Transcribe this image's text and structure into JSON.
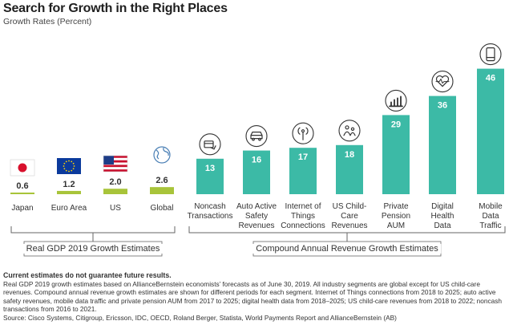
{
  "header": {
    "title": "Search for Growth in the Right Places",
    "subtitle": "Growth Rates (Percent)"
  },
  "colors": {
    "teal": "#3cbaa6",
    "lime": "#a8c43a",
    "axis": "#666666",
    "text": "#333333"
  },
  "chart_data": [
    {
      "type": "bar",
      "title": "Real GDP 2019 Growth Estimates",
      "categories": [
        "Japan",
        "Euro Area",
        "US",
        "Global"
      ],
      "values": [
        0.6,
        1.2,
        2.0,
        2.6
      ],
      "value_labels": [
        "0.6",
        "1.2",
        "2.0",
        "2.6"
      ],
      "flags": [
        "japan-flag-icon",
        "eu-flag-icon",
        "us-flag-icon",
        "globe-icon"
      ],
      "color": "#a8c43a"
    },
    {
      "type": "bar",
      "title": "Compound Annual Revenue Growth Estimates",
      "categories": [
        "Noncash Transactions",
        "Auto Active Safety Revenues",
        "Internet of Things Connections",
        "US Child-Care Revenues",
        "Private Pension AUM",
        "Digital Health Data",
        "Mobile Data Traffic"
      ],
      "category_lines": [
        [
          "Noncash",
          "Transactions"
        ],
        [
          "Auto Active",
          "Safety",
          "Revenues"
        ],
        [
          "Internet of",
          "Things",
          "Connections"
        ],
        [
          "US Child-",
          "Care",
          "Revenues"
        ],
        [
          "Private",
          "Pension",
          "AUM"
        ],
        [
          "Digital",
          "Health",
          "Data"
        ],
        [
          "Mobile",
          "Data",
          "Traffic"
        ]
      ],
      "values": [
        13,
        16,
        17,
        18,
        29,
        36,
        46
      ],
      "value_labels": [
        "13",
        "16",
        "17",
        "18",
        "29",
        "36",
        "46"
      ],
      "icons": [
        "card-payment-icon",
        "car-icon",
        "antenna-icon",
        "children-icon",
        "growth-bars-icon",
        "heart-monitor-icon",
        "smartphone-icon"
      ],
      "color": "#3cbaa6"
    }
  ],
  "notes": {
    "disclaimer": "Current estimates do not guarantee future results.",
    "body": "Real GDP 2019 growth estimates based on AllianceBernstein economists’ forecasts as of June 30, 2019. All industry segments are global except for US child-care revenues. Compound annual revenue growth estimates are shown for different periods for each segment. Internet of Things connections from 2018 to 2025; auto active safety revenues, mobile data traffic and private pension AUM from 2017 to 2025; digital health data from 2018–2025; US child-care revenues from 2018 to 2022; noncash transactions from 2016 to 2021.",
    "source": "Source: Cisco Systems, Citigroup, Ericsson, IDC, OECD, Roland Berger, Statista, World Payments Report and AllianceBernstein (AB)"
  }
}
